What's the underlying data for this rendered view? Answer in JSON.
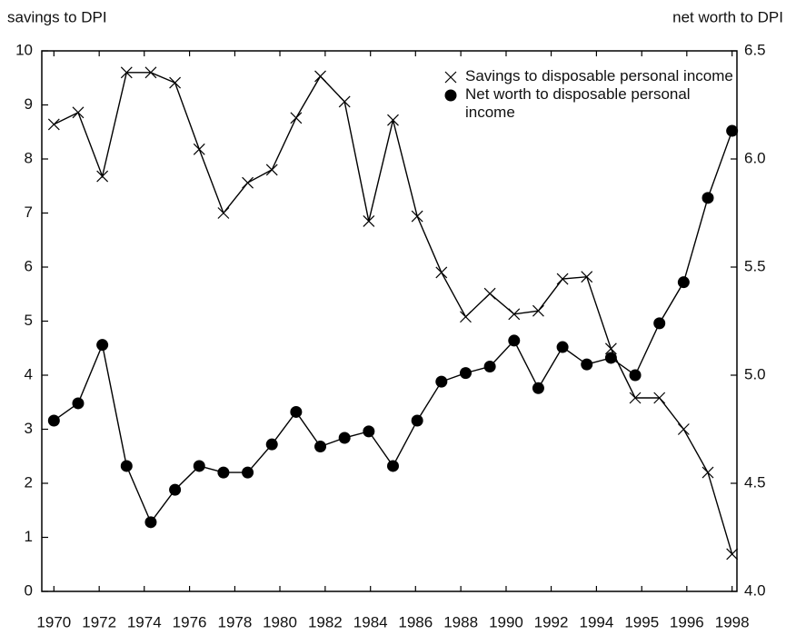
{
  "chart_data": {
    "type": "line",
    "y_label": "savings to DPI",
    "y2_label": "net worth to DPI",
    "x": [
      1970,
      1971,
      1972,
      1973,
      1974,
      1975,
      1976,
      1977,
      1978,
      1979,
      1980,
      1981,
      1982,
      1983,
      1984,
      1985,
      1986,
      1987,
      1988,
      1989,
      1990,
      1991,
      1992,
      1993,
      1994,
      1995,
      1996,
      1997,
      1998
    ],
    "series": [
      {
        "name": "Savings to disposable personal income",
        "color": "#000000",
        "marker": "x",
        "values": [
          8.64,
          8.86,
          7.68,
          9.6,
          9.6,
          9.41,
          8.18,
          7.0,
          7.56,
          7.8,
          8.76,
          9.53,
          9.06,
          6.85,
          8.72,
          6.94,
          5.9,
          5.08,
          5.51,
          5.13,
          5.19,
          5.78,
          5.82,
          4.49,
          3.58,
          3.58,
          3.0,
          2.2,
          0.69
        ]
      },
      {
        "name": "Net worth to disposable personal income",
        "color": "#000000",
        "marker": "circle",
        "axis": "y2",
        "values": [
          4.79,
          4.87,
          5.14,
          4.58,
          4.32,
          4.47,
          4.58,
          4.55,
          4.55,
          4.68,
          4.83,
          4.67,
          4.71,
          4.74,
          4.58,
          4.79,
          4.97,
          5.01,
          5.04,
          5.16,
          4.94,
          5.13,
          5.05,
          5.08,
          5.0,
          5.24,
          5.43,
          5.82,
          6.13
        ]
      }
    ],
    "xlim": [
      1969.5,
      1998.2
    ],
    "xticks": [
      {
        "value": 1970,
        "label": "1970"
      },
      {
        "value": 1971.87,
        "label": "1972"
      },
      {
        "value": 1973.73,
        "label": "1974"
      },
      {
        "value": 1975.6,
        "label": "1976"
      },
      {
        "value": 1977.47,
        "label": "1978"
      },
      {
        "value": 1979.33,
        "label": "1980"
      },
      {
        "value": 1981.2,
        "label": "1982"
      },
      {
        "value": 1983.07,
        "label": "1984"
      },
      {
        "value": 1984.93,
        "label": "1986"
      },
      {
        "value": 1986.8,
        "label": "1988"
      },
      {
        "value": 1988.67,
        "label": "1990"
      },
      {
        "value": 1990.53,
        "label": "1992"
      },
      {
        "value": 1992.4,
        "label": "1994"
      },
      {
        "value": 1994.27,
        "label": "1995"
      },
      {
        "value": 1996.13,
        "label": "1996"
      },
      {
        "value": 1998,
        "label": "1998"
      }
    ],
    "ylim": [
      0,
      10
    ],
    "yticks": [
      0,
      1,
      2,
      3,
      4,
      5,
      6,
      7,
      8,
      9,
      10
    ],
    "y2lim": [
      4.0,
      6.5
    ],
    "y2ticks": [
      {
        "value": 4,
        "label": "4.0"
      },
      4.5,
      {
        "value": 5,
        "label": "5.0"
      },
      5.5,
      {
        "value": 6,
        "label": "6.0"
      },
      6.5
    ],
    "legend": "upper right",
    "grid": false
  }
}
